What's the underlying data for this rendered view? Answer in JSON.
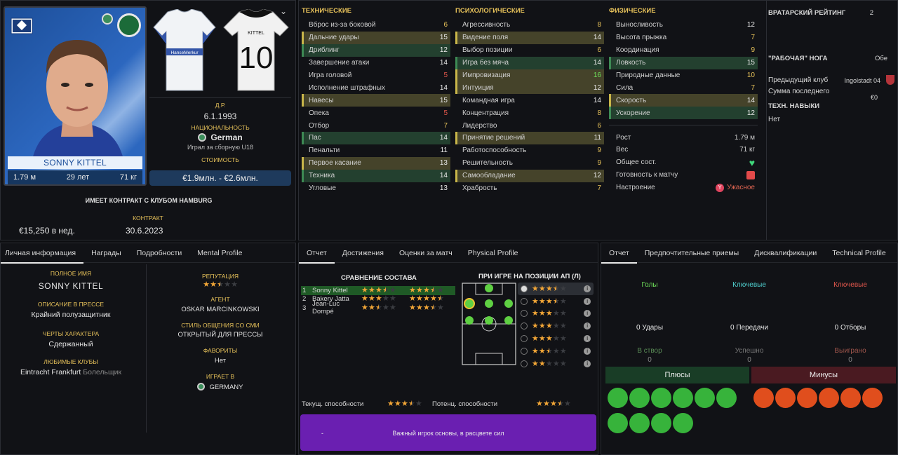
{
  "player": {
    "name": "SONNY KITTEL",
    "height": "1.79 м",
    "age": "29 лет",
    "weight": "71 кг",
    "kit_number": "10",
    "kit_name": "KITTEL",
    "home_sponsor": "HanseMerkur"
  },
  "bio": {
    "dob_label": "Д.Р.",
    "dob": "6.1.1993",
    "nat_label": "НАЦИОНАЛЬНОСТЬ",
    "nationality": "German",
    "intl": "Играл за сборную U18",
    "value_label": "СТОИМОСТЬ",
    "value": "€1.9млн. - €2.6млн."
  },
  "contract": {
    "title": "ИМЕЕТ КОНТРАКТ С КЛУБОМ HAMBURG",
    "label": "КОНТРАКТ",
    "wage": "€15,250 в нед.",
    "expires": "30.6.2023"
  },
  "attributes": {
    "technical": {
      "title": "ТЕХНИЧЕСКИЕ",
      "items": [
        {
          "n": "Вброс из-за боковой",
          "v": "6",
          "c": "y",
          "h": ""
        },
        {
          "n": "Дальние удары",
          "v": "15",
          "c": "w",
          "h": "hl"
        },
        {
          "n": "Дриблинг",
          "v": "12",
          "c": "w",
          "h": "hg"
        },
        {
          "n": "Завершение атаки",
          "v": "14",
          "c": "w",
          "h": ""
        },
        {
          "n": "Игра головой",
          "v": "5",
          "c": "r",
          "h": ""
        },
        {
          "n": "Исполнение штрафных",
          "v": "14",
          "c": "w",
          "h": ""
        },
        {
          "n": "Навесы",
          "v": "15",
          "c": "w",
          "h": "hl"
        },
        {
          "n": "Опека",
          "v": "5",
          "c": "r",
          "h": ""
        },
        {
          "n": "Отбор",
          "v": "7",
          "c": "y",
          "h": ""
        },
        {
          "n": "Пас",
          "v": "14",
          "c": "w",
          "h": "hg"
        },
        {
          "n": "Пенальти",
          "v": "11",
          "c": "w",
          "h": ""
        },
        {
          "n": "Первое касание",
          "v": "13",
          "c": "w",
          "h": "hl"
        },
        {
          "n": "Техника",
          "v": "14",
          "c": "w",
          "h": "hg"
        },
        {
          "n": "Угловые",
          "v": "13",
          "c": "w",
          "h": ""
        }
      ]
    },
    "mental": {
      "title": "ПСИХОЛОГИЧЕСКИЕ",
      "items": [
        {
          "n": "Агрессивность",
          "v": "8",
          "c": "y",
          "h": ""
        },
        {
          "n": "Видение поля",
          "v": "14",
          "c": "w",
          "h": "hl"
        },
        {
          "n": "Выбор позиции",
          "v": "6",
          "c": "y",
          "h": ""
        },
        {
          "n": "Игра без мяча",
          "v": "14",
          "c": "w",
          "h": "hg"
        },
        {
          "n": "Импровизация",
          "v": "16",
          "c": "g",
          "h": "hl"
        },
        {
          "n": "Интуиция",
          "v": "12",
          "c": "w",
          "h": "hl"
        },
        {
          "n": "Командная игра",
          "v": "14",
          "c": "w",
          "h": ""
        },
        {
          "n": "Концентрация",
          "v": "8",
          "c": "y",
          "h": ""
        },
        {
          "n": "Лидерство",
          "v": "6",
          "c": "y",
          "h": ""
        },
        {
          "n": "Принятие решений",
          "v": "11",
          "c": "w",
          "h": "hl"
        },
        {
          "n": "Работоспособность",
          "v": "9",
          "c": "y",
          "h": ""
        },
        {
          "n": "Решительность",
          "v": "9",
          "c": "y",
          "h": ""
        },
        {
          "n": "Самообладание",
          "v": "12",
          "c": "w",
          "h": "hl"
        },
        {
          "n": "Храбрость",
          "v": "7",
          "c": "y",
          "h": ""
        }
      ]
    },
    "physical": {
      "title": "ФИЗИЧЕСКИЕ",
      "items": [
        {
          "n": "Выносливость",
          "v": "12",
          "c": "w",
          "h": ""
        },
        {
          "n": "Высота прыжка",
          "v": "7",
          "c": "y",
          "h": ""
        },
        {
          "n": "Координация",
          "v": "9",
          "c": "y",
          "h": ""
        },
        {
          "n": "Ловкость",
          "v": "15",
          "c": "w",
          "h": "hg"
        },
        {
          "n": "Природные данные",
          "v": "10",
          "c": "y",
          "h": ""
        },
        {
          "n": "Сила",
          "v": "7",
          "c": "y",
          "h": ""
        },
        {
          "n": "Скорость",
          "v": "14",
          "c": "w",
          "h": "hl"
        },
        {
          "n": "Ускорение",
          "v": "12",
          "c": "w",
          "h": "hg"
        }
      ]
    }
  },
  "body": {
    "height_label": "Рост",
    "height": "1.79 м",
    "weight_label": "Вес",
    "weight": "71 кг",
    "condition_label": "Общее сост.",
    "readiness_label": "Готовность к матчу",
    "morale_label": "Настроение",
    "morale": "Ужасное"
  },
  "side": {
    "gk_label": "ВРАТАРСКИЙ РЕЙТИНГ",
    "gk": "2",
    "foot_label": "\"РАБОЧАЯ\" НОГА",
    "foot": "Обе",
    "prev_club_label": "Предыдущий клуб",
    "prev_club": "Ingolstadt 04",
    "fee_label": "Сумма последнего",
    "fee": "€0",
    "tech_label": "ТЕХН. НАВЫКИ",
    "tech": "Нет"
  },
  "personal": {
    "tabs": [
      "Личная информация",
      "Награды",
      "Подробности",
      "Mental Profile"
    ],
    "full_name_label": "ПОЛНОЕ ИМЯ",
    "full_name": "SONNY KITTEL",
    "press_label": "ОПИСАНИЕ В ПРЕССЕ",
    "press": "Крайний полузащитник",
    "traits_label": "ЧЕРТЫ ХАРАКТЕРА",
    "traits": "Сдержанный",
    "fav_clubs_label": "ЛЮБИМЫЕ КЛУБЫ",
    "fav_club": "Eintracht Frankfurt",
    "fav_club_role": "Болельщик",
    "rep_label": "РЕПУТАЦИЯ",
    "agent_label": "АГЕНТ",
    "agent": "OSKAR MARCINKOWSKI",
    "media_label": "СТИЛЬ ОБЩЕНИЯ СО СМИ",
    "media": "ОТКРЫТЫЙ ДЛЯ ПРЕССЫ",
    "favs_label": "ФАВОРИТЫ",
    "favs": "Нет",
    "plays_label": "ИГРАЕТ В",
    "plays": "GERMANY"
  },
  "report": {
    "tabs": [
      "Отчет",
      "Достижения",
      "Оценки за матч",
      "Physical Profile"
    ],
    "squad_title": "СРАВНЕНИЕ СОСТАВА",
    "pos_title": "ПРИ ИГРЕ НА ПОЗИЦИИ АП (Л)",
    "squad": [
      {
        "i": "1",
        "n": "Sonny Kittel",
        "a": 3.5,
        "p": 3.5
      },
      {
        "i": "2",
        "n": "Bakery Jatta",
        "a": 3,
        "p": 4.5
      },
      {
        "i": "3",
        "n": "Jean-Luc Dompé",
        "a": 2.5,
        "p": 3.5
      }
    ],
    "pos_ratings": [
      3.5,
      3.5,
      3,
      3,
      3,
      2.5,
      2
    ],
    "cur_label": "Текущ. способности",
    "cur": 3.5,
    "pot_label": "Потенц. способности",
    "pot": 3.5,
    "banner_left": "-",
    "banner": "Важный игрок основы, в расцвете сил"
  },
  "scout": {
    "tabs": [
      "Отчет",
      "Предпочтительные приемы",
      "Дисквалификации",
      "Technical Profile"
    ],
    "c1": {
      "title": "Голы",
      "stat": "0 Удары",
      "sub": "В створ",
      "subv": "0"
    },
    "c2": {
      "title": "Ключевые",
      "stat": "0 Передачи",
      "sub": "Успешно",
      "subv": "0"
    },
    "c3": {
      "title": "Ключевые",
      "stat": "0 Отборы",
      "sub": "Выиграно",
      "subv": "0"
    },
    "pros": "Плюсы",
    "cons": "Минусы"
  },
  "colors": {
    "accent_gold": "#e7c25a",
    "highlight_yellow": "#45432a",
    "highlight_green": "#23402f",
    "pros_green": "#37b33b",
    "cons_red": "#e04e1d"
  }
}
